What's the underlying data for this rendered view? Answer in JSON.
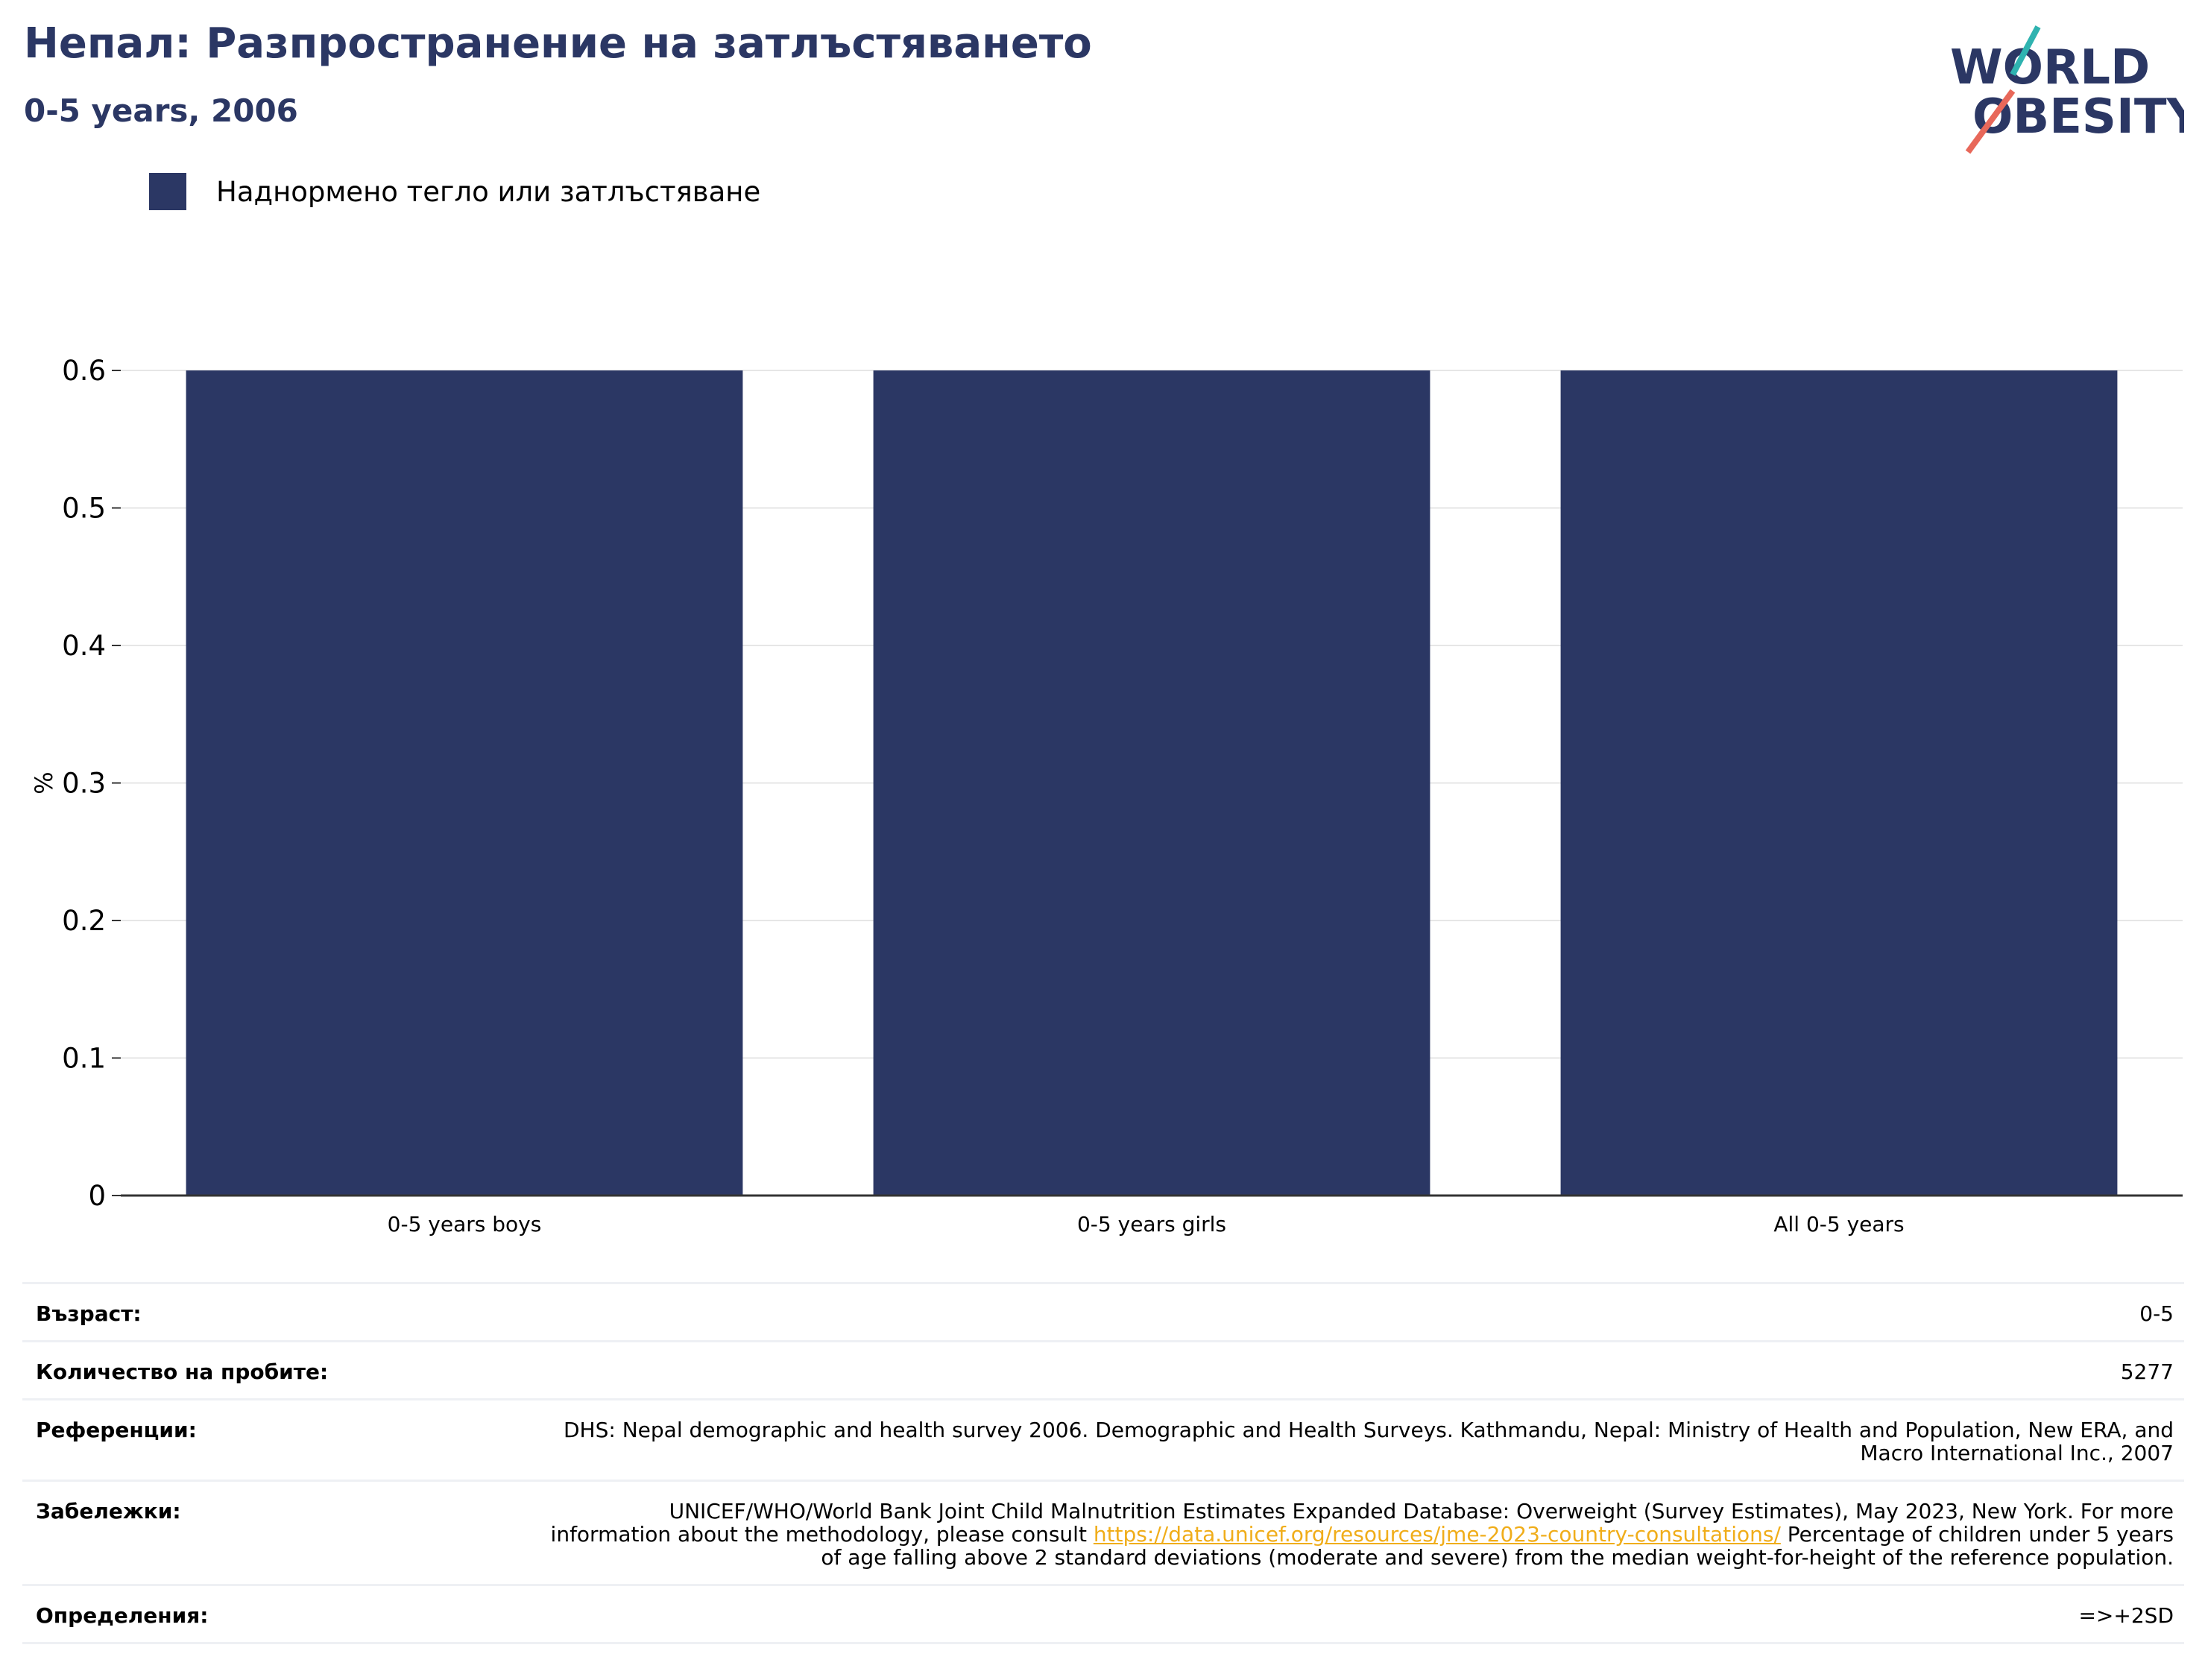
{
  "header": {
    "title": "Непал: Разпространение на затлъстяването",
    "subtitle": "0-5 years, 2006"
  },
  "logo": {
    "line1": "WORLD",
    "line2": "OBESITY"
  },
  "legend": {
    "label": "Наднормено тегло или затлъстяване",
    "color": "#2b3764"
  },
  "chart_data": {
    "type": "bar",
    "categories": [
      "0-5 years boys",
      "0-5 years girls",
      "All 0-5 years"
    ],
    "series": [
      {
        "name": "Наднормено тегло или затлъстяване",
        "values": [
          0.6,
          0.6,
          0.6
        ]
      }
    ],
    "ylabel": "%",
    "ylim": [
      0,
      0.6
    ],
    "yticks": [
      "0",
      "0.1",
      "0.2",
      "0.3",
      "0.4",
      "0.5",
      "0.6"
    ],
    "grid": true,
    "legend_position": "top-left",
    "bar_color": "#2b3764"
  },
  "info": {
    "age_label": "Възраст:",
    "age_value": "0-5",
    "sample_label": "Количество на пробите:",
    "sample_value": "5277",
    "refs_label": "Референции:",
    "refs_value": "DHS: Nepal demographic and health survey 2006. Demographic and Health Surveys. Kathmandu, Nepal: Ministry of Health and Population, New ERA, and Macro International Inc., 2007",
    "notes_label": "Забележки:",
    "notes_before": "UNICEF/WHO/World Bank Joint Child Malnutrition Estimates Expanded Database: Overweight (Survey Estimates), May 2023, New York. For more information about the methodology, please consult",
    "notes_link": "https://data.unicef.org/resources/jme-2023-country-consultations/",
    "notes_after": "Percentage of children under 5 years of age falling above 2 standard deviations (moderate and severe) from the median weight-for-height of the reference population.",
    "defs_label": "Определения:",
    "defs_value": "=>+2SD"
  },
  "colors": {
    "brand": "#2b3764",
    "logo_teal": "#2fb3b0",
    "logo_coral": "#e8685a",
    "link": "#f0ad1a"
  }
}
